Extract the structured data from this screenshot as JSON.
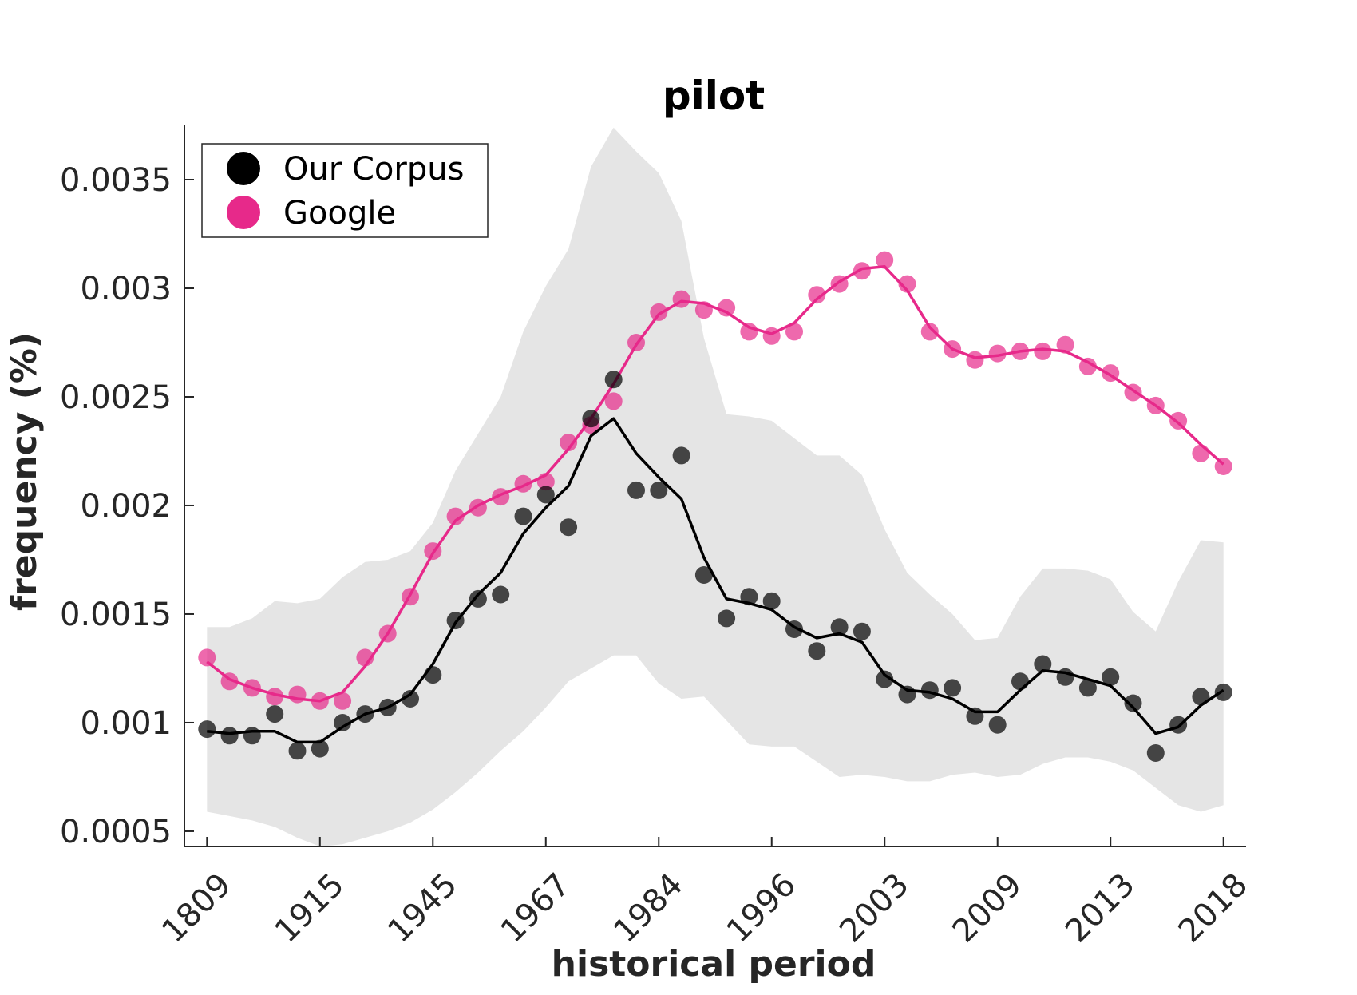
{
  "chart_data": {
    "type": "scatter",
    "title": "pilot",
    "xlabel": "historical period",
    "ylabel": "frequency (%)",
    "x_tick_labels": [
      "1809",
      "1915",
      "1945",
      "1967",
      "1984",
      "1996",
      "2003",
      "2009",
      "2013",
      "2018"
    ],
    "x_tick_positions": [
      1,
      6,
      11,
      16,
      21,
      26,
      31,
      36,
      41,
      46
    ],
    "y_ticks": [
      0.0005,
      0.001,
      0.0015,
      0.002,
      0.0025,
      0.003,
      0.0035
    ],
    "y_tick_labels": [
      "0.0005",
      "0.001",
      "0.0015",
      "0.002",
      "0.0025",
      "0.003",
      "0.0035"
    ],
    "xlim": [
      0,
      47
    ],
    "ylim": [
      0.00043,
      0.00375
    ],
    "grid": false,
    "legend_position": "top-left",
    "series": [
      {
        "name": "Our Corpus",
        "color": "#000000",
        "points": [
          0.00097,
          0.00094,
          0.00094,
          0.00104,
          0.00087,
          0.00088,
          0.001,
          0.00104,
          0.00107,
          0.00111,
          0.00122,
          0.00147,
          0.00157,
          0.00159,
          0.00195,
          0.00205,
          0.0019,
          0.0024,
          0.00258,
          0.00207,
          0.00207,
          0.00223,
          0.00168,
          0.00148,
          0.00158,
          0.00156,
          0.00143,
          0.00133,
          0.00144,
          0.00142,
          0.0012,
          0.00113,
          0.00115,
          0.00116,
          0.00103,
          0.00099,
          0.00119,
          0.00127,
          0.00121,
          0.00116,
          0.00121,
          0.00109,
          0.00086,
          0.00099,
          0.00112,
          0.00114
        ],
        "smooth": [
          0.00096,
          0.00095,
          0.00096,
          0.00096,
          0.00091,
          0.00091,
          0.00098,
          0.00104,
          0.00107,
          0.00113,
          0.00127,
          0.00146,
          0.00159,
          0.00169,
          0.00187,
          0.00199,
          0.00209,
          0.00232,
          0.0024,
          0.00224,
          0.00213,
          0.00203,
          0.00176,
          0.00157,
          0.00155,
          0.00152,
          0.00144,
          0.00139,
          0.00141,
          0.00137,
          0.00122,
          0.00115,
          0.00114,
          0.00111,
          0.00105,
          0.00105,
          0.00115,
          0.00124,
          0.00123,
          0.0012,
          0.00117,
          0.00107,
          0.00095,
          0.00098,
          0.00108,
          0.00115
        ]
      },
      {
        "name": "Google",
        "color": "#e7298a",
        "points": [
          0.0013,
          0.00119,
          0.00116,
          0.00112,
          0.00113,
          0.0011,
          0.0011,
          0.0013,
          0.00141,
          0.00158,
          0.00179,
          0.00195,
          0.00199,
          0.00204,
          0.0021,
          0.00211,
          0.00229,
          0.00237,
          0.00248,
          0.00275,
          0.00289,
          0.00295,
          0.0029,
          0.00291,
          0.0028,
          0.00278,
          0.0028,
          0.00297,
          0.00302,
          0.00308,
          0.00313,
          0.00302,
          0.0028,
          0.00272,
          0.00267,
          0.0027,
          0.00271,
          0.00271,
          0.00274,
          0.00264,
          0.00261,
          0.00252,
          0.00246,
          0.00239,
          0.00224,
          0.00218
        ],
        "smooth": [
          0.00128,
          0.0012,
          0.00116,
          0.00113,
          0.00111,
          0.0011,
          0.00114,
          0.00126,
          0.00141,
          0.00159,
          0.00178,
          0.00193,
          0.002,
          0.00205,
          0.00209,
          0.00214,
          0.00226,
          0.0024,
          0.00256,
          0.00274,
          0.00288,
          0.00294,
          0.00293,
          0.00289,
          0.00282,
          0.00279,
          0.00284,
          0.00295,
          0.00303,
          0.00309,
          0.0031,
          0.00299,
          0.00282,
          0.00272,
          0.00268,
          0.00269,
          0.00271,
          0.00272,
          0.00271,
          0.00266,
          0.0026,
          0.00253,
          0.00246,
          0.00238,
          0.00228,
          0.00219
        ]
      }
    ],
    "band": {
      "color": "#e5e5e5",
      "upper": [
        0.00144,
        0.00144,
        0.00148,
        0.00156,
        0.00155,
        0.00157,
        0.00167,
        0.00174,
        0.00175,
        0.00179,
        0.00192,
        0.00216,
        0.00233,
        0.0025,
        0.0028,
        0.00301,
        0.00318,
        0.00356,
        0.00374,
        0.00363,
        0.00353,
        0.00331,
        0.00277,
        0.00242,
        0.00241,
        0.00239,
        0.00231,
        0.00223,
        0.00223,
        0.00214,
        0.00189,
        0.00169,
        0.00159,
        0.0015,
        0.00138,
        0.00139,
        0.00158,
        0.00171,
        0.00171,
        0.0017,
        0.00166,
        0.00151,
        0.00142,
        0.00165,
        0.00184,
        0.00183
      ],
      "lower": [
        0.00059,
        0.00057,
        0.00055,
        0.00052,
        0.00047,
        0.00043,
        0.00044,
        0.00047,
        0.0005,
        0.00054,
        0.0006,
        0.00068,
        0.00077,
        0.00087,
        0.00096,
        0.00107,
        0.00119,
        0.00125,
        0.00131,
        0.00131,
        0.00118,
        0.00111,
        0.00112,
        0.00101,
        0.0009,
        0.00089,
        0.00089,
        0.00082,
        0.00075,
        0.00076,
        0.00075,
        0.00073,
        0.00073,
        0.00076,
        0.00077,
        0.00075,
        0.00076,
        0.00081,
        0.00084,
        0.00084,
        0.00082,
        0.00078,
        0.0007,
        0.00062,
        0.00059,
        0.00062
      ]
    }
  }
}
